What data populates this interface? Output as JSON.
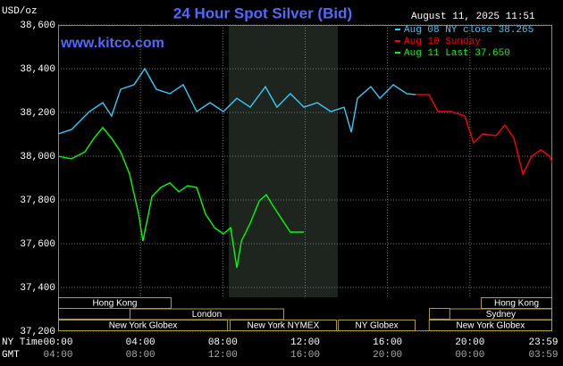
{
  "chart_data": {
    "type": "line",
    "title": "24 Hour Spot Silver (Bid)",
    "unit_label": "USD/oz",
    "timestamp": "August 11, 2025 11:51",
    "site": "www.kitco.com",
    "xlim": [
      0,
      24
    ],
    "ylim": [
      37.2,
      38.6
    ],
    "yticks": [
      {
        "value": 37.2,
        "label": "37,200"
      },
      {
        "value": 37.4,
        "label": "37,400"
      },
      {
        "value": 37.6,
        "label": "37,600"
      },
      {
        "value": 37.8,
        "label": "37,800"
      },
      {
        "value": 38.0,
        "label": "38,000"
      },
      {
        "value": 38.2,
        "label": "38,200"
      },
      {
        "value": 38.4,
        "label": "38,400"
      },
      {
        "value": 38.6,
        "label": "38,600"
      }
    ],
    "xticks": [
      {
        "value": 0,
        "label": "00:00"
      },
      {
        "value": 4,
        "label": "04:00"
      },
      {
        "value": 8,
        "label": "08:00"
      },
      {
        "value": 12,
        "label": "12:00"
      },
      {
        "value": 16,
        "label": "16:00"
      },
      {
        "value": 20,
        "label": "20:00"
      },
      {
        "value": 23.98,
        "label": "23:59"
      }
    ],
    "x_secondary_labels": [
      "04:00",
      "08:00",
      "12:00",
      "16:00",
      "20:00",
      "00:00",
      "03:59"
    ],
    "x_row_labels": [
      "NY Time",
      "GMT"
    ],
    "grid": true,
    "series": [
      {
        "name": "Aug 08 NY close 38.265",
        "color": "#33ccff",
        "x": [
          0,
          0.65,
          1.52,
          2.17,
          2.6,
          3.04,
          3.69,
          4.21,
          4.77,
          5.43,
          6.08,
          6.73,
          7.38,
          8.03,
          8.68,
          9.33,
          10.07,
          10.63,
          11.28,
          11.94,
          12.59,
          13.24,
          13.89,
          14.24,
          14.54,
          15.19,
          15.63,
          16.28,
          16.93,
          17.36
        ],
        "values": [
          38.102,
          38.122,
          38.204,
          38.245,
          38.184,
          38.306,
          38.327,
          38.4,
          38.306,
          38.286,
          38.327,
          38.204,
          38.245,
          38.204,
          38.265,
          38.224,
          38.318,
          38.224,
          38.286,
          38.224,
          38.245,
          38.204,
          38.224,
          38.11,
          38.265,
          38.318,
          38.265,
          38.327,
          38.286,
          38.282
        ]
      },
      {
        "name": "Aug 10 Sunday",
        "color": "#ff0000",
        "x": [
          17.36,
          18.01,
          18.45,
          19.1,
          19.75,
          20.18,
          20.62,
          21.27,
          21.7,
          22.14,
          22.57,
          23.0,
          23.44,
          23.87,
          24.0
        ],
        "values": [
          38.282,
          38.282,
          38.204,
          38.204,
          38.184,
          38.061,
          38.102,
          38.094,
          38.143,
          38.082,
          37.918,
          38.0,
          38.029,
          38.0,
          37.971
        ]
      },
      {
        "name": "Aug 11 Last 37.650",
        "color": "#00ff00",
        "x": [
          0,
          0.65,
          1.3,
          1.74,
          2.17,
          2.6,
          3.04,
          3.47,
          3.91,
          4.12,
          4.56,
          4.99,
          5.43,
          5.86,
          6.29,
          6.73,
          7.16,
          7.6,
          8.03,
          8.38,
          8.68,
          8.9,
          9.33,
          9.77,
          10.11,
          10.42,
          10.85,
          11.28,
          11.94
        ],
        "values": [
          38.0,
          37.988,
          38.02,
          38.082,
          38.131,
          38.082,
          38.02,
          37.918,
          37.735,
          37.612,
          37.816,
          37.857,
          37.878,
          37.837,
          37.865,
          37.857,
          37.735,
          37.673,
          37.645,
          37.673,
          37.49,
          37.612,
          37.694,
          37.796,
          37.824,
          37.776,
          37.714,
          37.653,
          37.653
        ]
      }
    ],
    "sessions": [
      {
        "label": "Hong Kong",
        "start": 0,
        "end": 5.51,
        "row": 0
      },
      {
        "label": "Hong Kong",
        "start": 20.53,
        "end": 24,
        "row": 0
      },
      {
        "label": "London",
        "start": 3.47,
        "end": 10.98,
        "row": 1
      },
      {
        "label": "Sydney",
        "start": 19.0,
        "end": 24,
        "row": 1
      },
      {
        "label": "New York Globex",
        "start": 0,
        "end": 8.25,
        "row": 2
      },
      {
        "label": "New York NYMEX",
        "start": 8.33,
        "end": 13.54,
        "row": 2
      },
      {
        "label": "NY Globex",
        "start": 13.59,
        "end": 17.36,
        "row": 2
      },
      {
        "label": "New York Globex",
        "start": 18.0,
        "end": 24,
        "row": 2
      }
    ]
  }
}
